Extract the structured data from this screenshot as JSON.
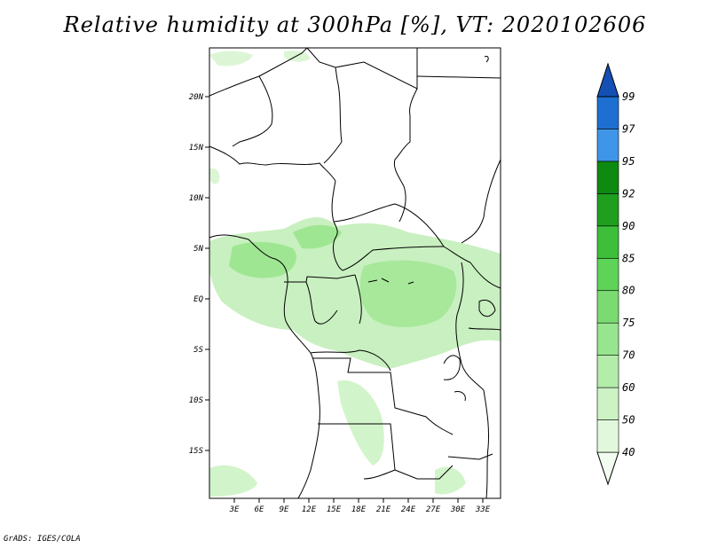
{
  "title": "Relative humidity at 300hPa [%], VT: 2020102606",
  "footer": "GrADS: IGES/COLA",
  "map": {
    "lat_labels": [
      "20N",
      "15N",
      "10N",
      "5N",
      "EQ",
      "5S",
      "10S",
      "15S"
    ],
    "lon_labels": [
      "3E",
      "6E",
      "9E",
      "12E",
      "15E",
      "18E",
      "21E",
      "24E",
      "27E",
      "30E",
      "33E"
    ]
  },
  "colorbar": {
    "levels": [
      "40",
      "50",
      "60",
      "70",
      "75",
      "80",
      "85",
      "90",
      "92",
      "95",
      "97",
      "99"
    ],
    "colors": [
      "#f2fcf0",
      "#e2f8dc",
      "#cdf3c5",
      "#b4ecaa",
      "#97e68f",
      "#7bdb72",
      "#5dd457",
      "#3dbf3a",
      "#1f9f1e",
      "#0f8a10",
      "#3f95e8",
      "#1e6fd2",
      "#1450b4"
    ]
  }
}
